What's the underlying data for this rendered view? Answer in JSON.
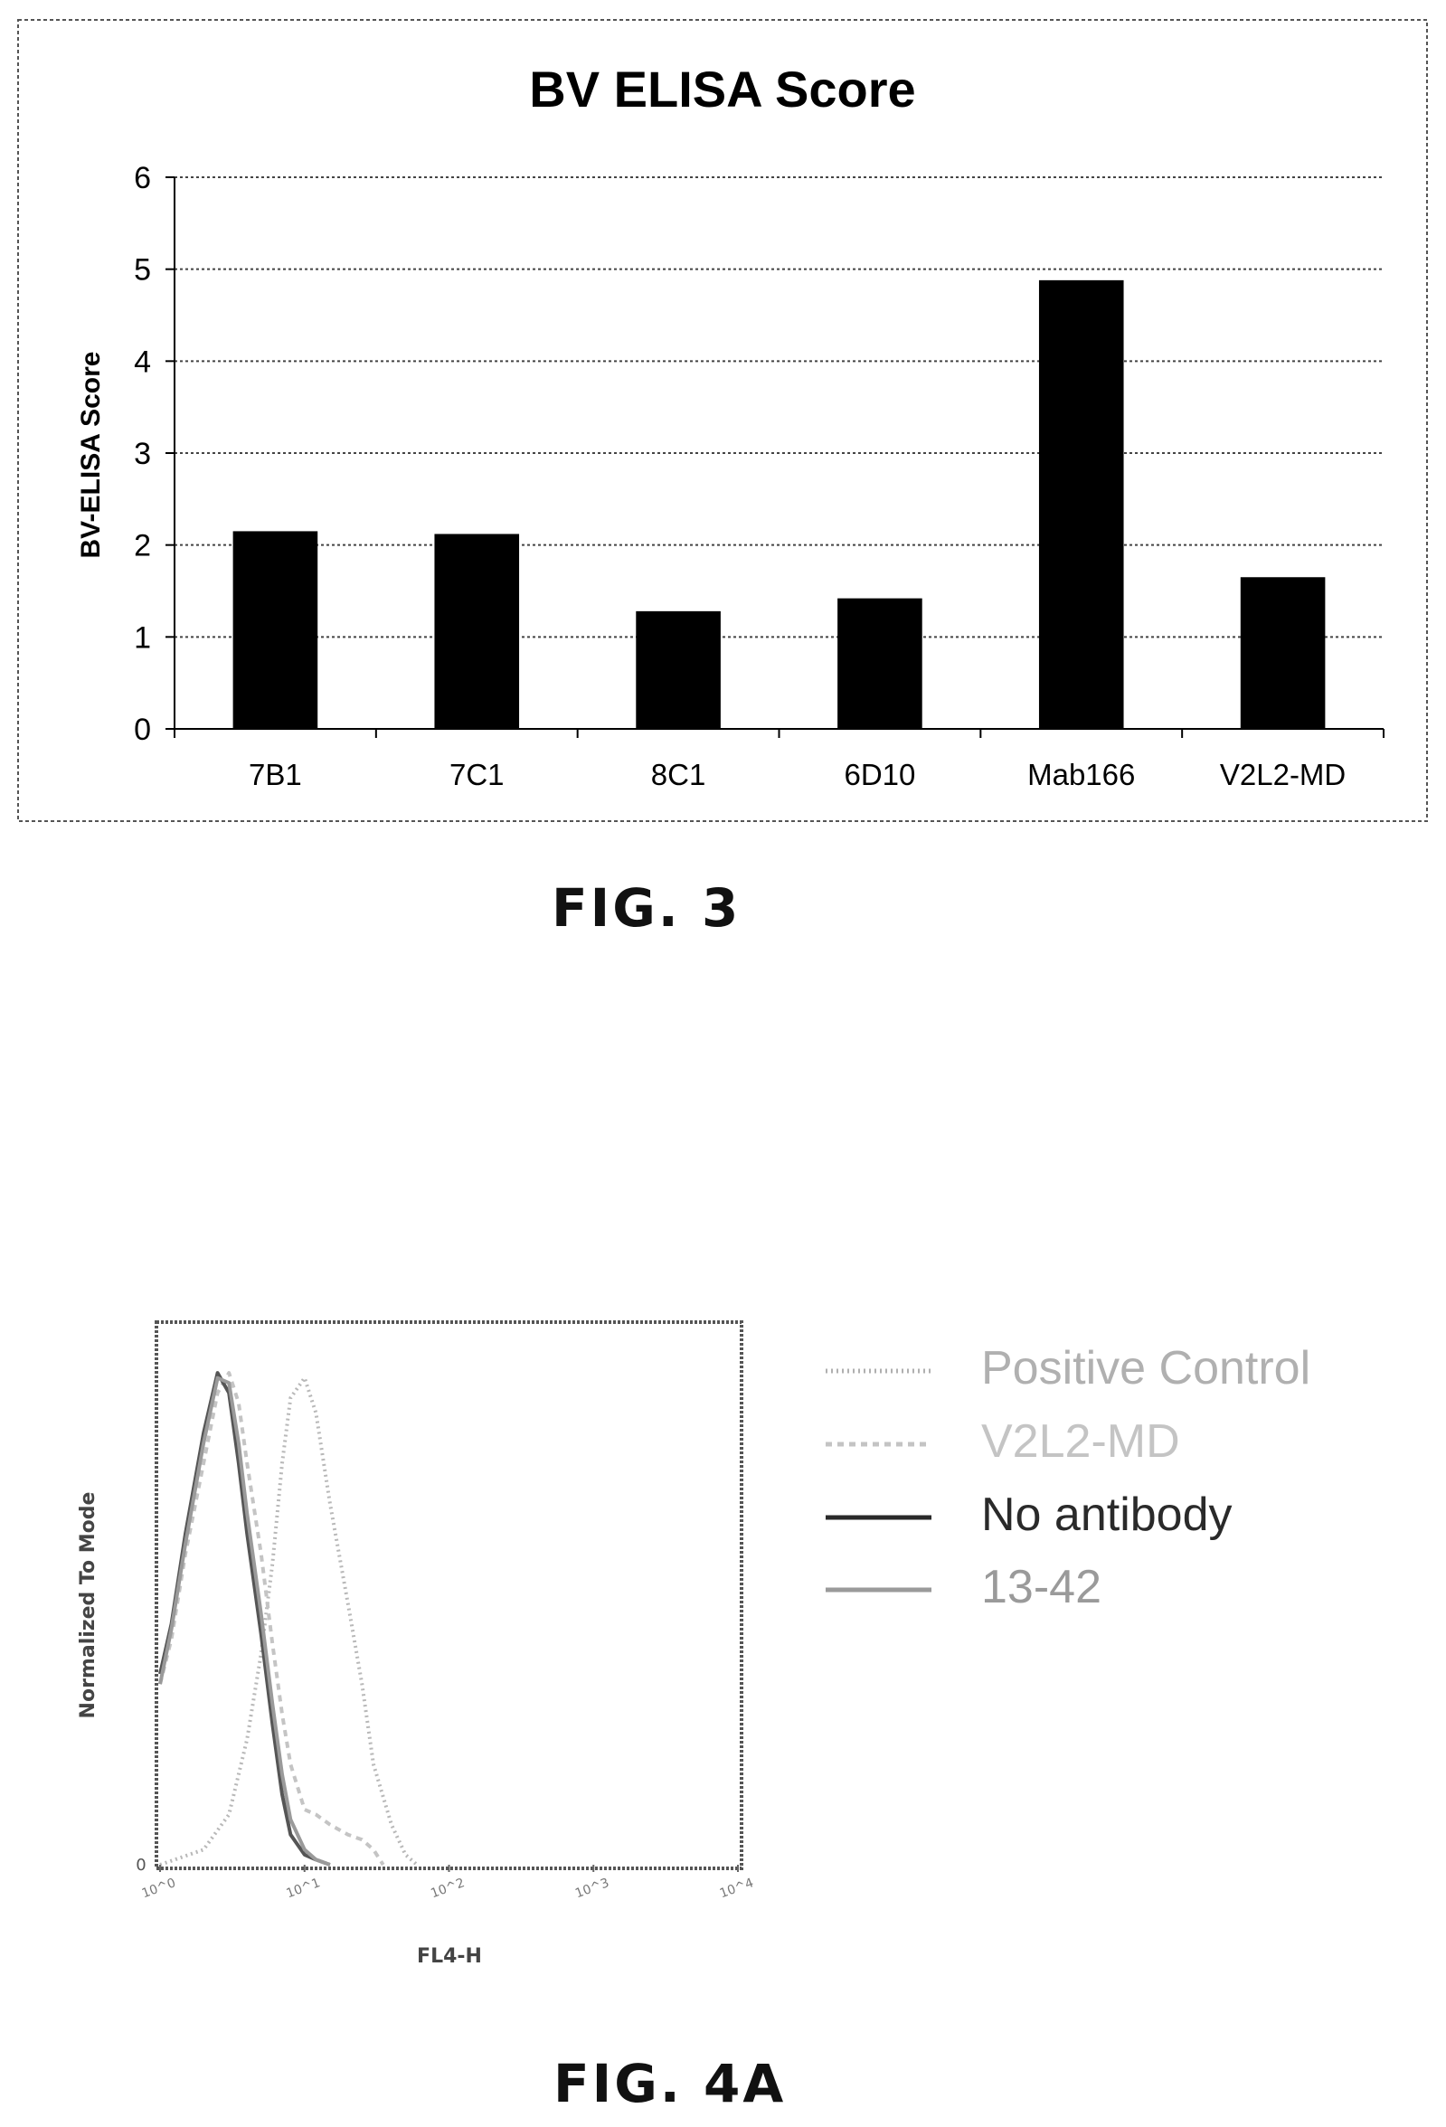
{
  "fig3": {
    "label": "FIG. 3",
    "chart_data": {
      "type": "bar",
      "title": "BV ELISA Score",
      "ylabel": "BV-ELISA Score",
      "xlabel": "",
      "categories": [
        "7B1",
        "7C1",
        "8C1",
        "6D10",
        "Mab166",
        "V2L2-MD"
      ],
      "values": [
        2.15,
        2.12,
        1.28,
        1.42,
        4.88,
        1.65
      ],
      "ylim": [
        0,
        6
      ],
      "yticks": [
        "0",
        "1",
        "2",
        "3",
        "4",
        "5",
        "6"
      ],
      "grid": true,
      "bar_color": "#000000"
    }
  },
  "fig4a": {
    "label": "FIG. 4A",
    "chart_data": {
      "type": "line",
      "xlabel": "FL4-H",
      "ylabel": "Normalized To Mode",
      "x_scale": "log",
      "xlim": [
        1,
        10000
      ],
      "ylim": [
        0,
        100
      ],
      "yticks": [
        "0"
      ],
      "xticks": [
        "10^0",
        "10^1",
        "10^2",
        "10^3",
        "10^4"
      ],
      "legend_position": "right",
      "series": [
        {
          "name": "Positive Control",
          "style": "dotted",
          "color": "#b8b8b8",
          "x": [
            1,
            2,
            3,
            4,
            5,
            6,
            7,
            8,
            10,
            12,
            15,
            20,
            25,
            30,
            40,
            50,
            60
          ],
          "y": [
            0,
            3,
            10,
            25,
            42,
            60,
            80,
            93,
            97,
            90,
            72,
            52,
            36,
            20,
            8,
            2,
            0
          ]
        },
        {
          "name": "V2L2-MD",
          "style": "dashed",
          "color": "#c4c4c4",
          "x": [
            1,
            1.2,
            1.5,
            2,
            2.5,
            3,
            3.5,
            4,
            5,
            6,
            7,
            8,
            10,
            12,
            15,
            20,
            25,
            30,
            35
          ],
          "y": [
            36,
            45,
            62,
            80,
            94,
            98,
            92,
            80,
            62,
            44,
            30,
            20,
            11,
            10,
            8,
            6,
            5,
            3,
            0
          ]
        },
        {
          "name": "No antibody",
          "style": "solid",
          "color": "#555555",
          "x": [
            1,
            1.2,
            1.5,
            2,
            2.5,
            3,
            3.5,
            4,
            5,
            6,
            7,
            8,
            10,
            12,
            15
          ],
          "y": [
            38,
            48,
            66,
            86,
            98,
            94,
            80,
            66,
            46,
            28,
            14,
            6,
            2,
            1,
            0
          ]
        },
        {
          "name": "13-42",
          "style": "solid",
          "color": "#9a9a9a",
          "x": [
            1,
            1.2,
            1.5,
            2,
            2.5,
            3,
            3.5,
            4,
            5,
            6,
            7,
            8,
            10,
            12,
            15
          ],
          "y": [
            36,
            47,
            64,
            84,
            97,
            96,
            84,
            70,
            50,
            32,
            18,
            9,
            3,
            1,
            0
          ]
        }
      ],
      "legend_colors": {
        "Positive Control": "#b0b0b0",
        "V2L2-MD": "#c4c4c4",
        "No antibody": "#2a2a2a",
        "13-42": "#9a9a9a"
      }
    }
  }
}
